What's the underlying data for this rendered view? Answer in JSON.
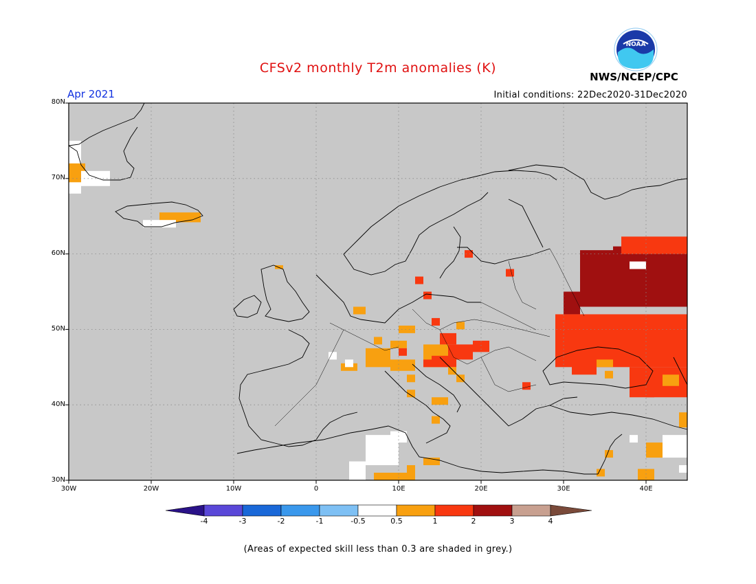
{
  "header": {
    "title": "CFSv2 monthly T2m anomalies (K)",
    "month": "Apr 2021",
    "initial_conditions": "Initial conditions: 22Dec2020-31Dec2020",
    "agency": "NWS/NCEP/CPC",
    "logo_text": "NOAA"
  },
  "map": {
    "lat_labels": [
      "80N",
      "70N",
      "60N",
      "50N",
      "40N",
      "30N"
    ],
    "lon_labels": [
      "30W",
      "20W",
      "10W",
      "0",
      "10E",
      "20E",
      "30E",
      "40E"
    ],
    "background_color": "#c8c8c8",
    "extent": {
      "lon_min": -30,
      "lon_max": 45,
      "lat_min": 30,
      "lat_max": 80
    }
  },
  "colorbar": {
    "labels": [
      "-4",
      "-3",
      "-2",
      "-1",
      "-0.5",
      "0.5",
      "1",
      "2",
      "3",
      "4"
    ],
    "colors": [
      "#2a1288",
      "#5a48d8",
      "#1a68d8",
      "#3a98ec",
      "#7ec0f4",
      "#ffffff",
      "#f8a010",
      "#f83810",
      "#a01010",
      "#c8a090",
      "#7a4a3a"
    ]
  },
  "footnote": "(Areas of expected skill less than 0.3 are shaded in grey.)"
}
